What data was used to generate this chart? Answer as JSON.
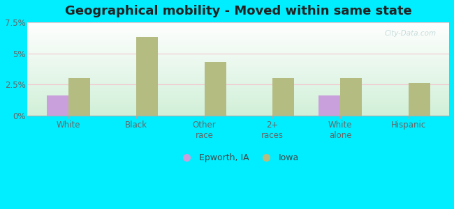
{
  "title": "Geographical mobility - Moved within same state",
  "categories": [
    "White",
    "Black",
    "Other\nrace",
    "2+\nraces",
    "White\nalone",
    "Hispanic"
  ],
  "epworth_values": [
    1.6,
    0.0,
    0.0,
    0.0,
    1.6,
    0.0
  ],
  "iowa_values": [
    3.0,
    6.3,
    4.3,
    3.0,
    3.0,
    2.6
  ],
  "epworth_color": "#c9a0dc",
  "iowa_color": "#b5bc82",
  "ylim": [
    0,
    7.5
  ],
  "yticks": [
    0,
    2.5,
    5.0,
    7.5
  ],
  "yticklabels": [
    "0%",
    "2.5%",
    "5%",
    "7.5%"
  ],
  "bg_top": "#ffffff",
  "bg_bottom": "#d0f0d8",
  "outer_background": "#00eeff",
  "legend_epworth": "Epworth, IA",
  "legend_iowa": "Iowa",
  "bar_width": 0.32,
  "title_fontsize": 13,
  "tick_fontsize": 8.5,
  "legend_fontsize": 9,
  "grid_color": "#f0c8d0",
  "watermark_color": "#c0d8d8"
}
